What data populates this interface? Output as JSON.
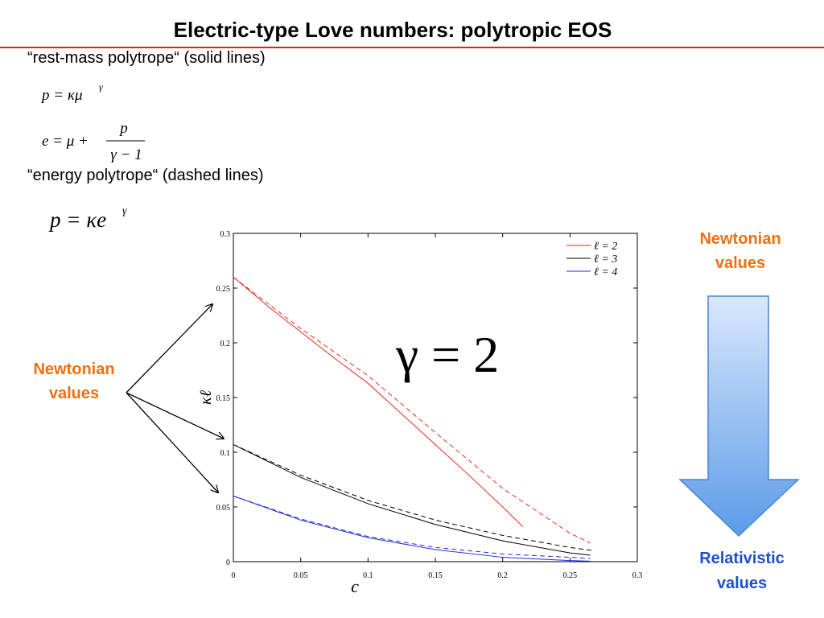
{
  "slide": {
    "title": "Electric-type Love numbers: polytropic EOS",
    "rest_mass_label": "“rest-mass polytrope“ (solid lines)",
    "formula1": {
      "base": "p = κμ",
      "sup": "γ"
    },
    "formula2": {
      "lhs": "e = μ +",
      "numerator": "p",
      "denominator": "γ − 1"
    },
    "energy_label": "“energy polytrope“ (dashed lines)",
    "formula3": {
      "base": "p = κe",
      "sup": "γ"
    },
    "left_note": [
      "Newtonian",
      "values"
    ],
    "right_top_note": [
      "Newtonian",
      "values"
    ],
    "right_bottom_note": [
      "Relativistic",
      "values"
    ]
  },
  "chart_data": {
    "type": "line",
    "x_label": "c",
    "y_label": "κℓ",
    "annotation": "γ = 2",
    "xlim": [
      0,
      0.3
    ],
    "ylim": [
      0,
      0.3
    ],
    "xticks": [
      0,
      0.05,
      0.1,
      0.15,
      0.2,
      0.25,
      0.3
    ],
    "yticks": [
      0,
      0.05,
      0.1,
      0.15,
      0.2,
      0.25,
      0.3
    ],
    "legend": "top-right",
    "series": [
      {
        "name": "ℓ = 2",
        "color": "#e8291c",
        "linestyle": "solid",
        "x": [
          0,
          0.025,
          0.05,
          0.075,
          0.1,
          0.125,
          0.15,
          0.175,
          0.2,
          0.215
        ],
        "values": [
          0.26,
          0.234,
          0.21,
          0.186,
          0.163,
          0.135,
          0.107,
          0.079,
          0.05,
          0.032
        ]
      },
      {
        "name": "ℓ = 3",
        "color": "#000000",
        "linestyle": "solid",
        "x": [
          0,
          0.05,
          0.1,
          0.15,
          0.2,
          0.25,
          0.265
        ],
        "values": [
          0.107,
          0.077,
          0.053,
          0.034,
          0.019,
          0.008,
          0.006
        ]
      },
      {
        "name": "ℓ = 4",
        "color": "#1f2fd6",
        "linestyle": "solid",
        "x": [
          0,
          0.05,
          0.1,
          0.15,
          0.2,
          0.25,
          0.265
        ],
        "values": [
          0.06,
          0.038,
          0.022,
          0.011,
          0.004,
          0.001,
          0.0005
        ]
      },
      {
        "color": "#e8291c",
        "linestyle": "dashed",
        "x": [
          0,
          0.05,
          0.1,
          0.15,
          0.2,
          0.25,
          0.265
        ],
        "values": [
          0.26,
          0.213,
          0.17,
          0.118,
          0.067,
          0.026,
          0.017
        ]
      },
      {
        "color": "#000000",
        "linestyle": "dashed",
        "x": [
          0,
          0.05,
          0.1,
          0.15,
          0.2,
          0.25,
          0.268
        ],
        "values": [
          0.107,
          0.079,
          0.056,
          0.038,
          0.024,
          0.013,
          0.01
        ]
      },
      {
        "color": "#1f2fd6",
        "linestyle": "dashed",
        "x": [
          0,
          0.05,
          0.1,
          0.15,
          0.2,
          0.25,
          0.265
        ],
        "values": [
          0.06,
          0.039,
          0.023,
          0.013,
          0.007,
          0.004,
          0.003
        ]
      }
    ]
  }
}
